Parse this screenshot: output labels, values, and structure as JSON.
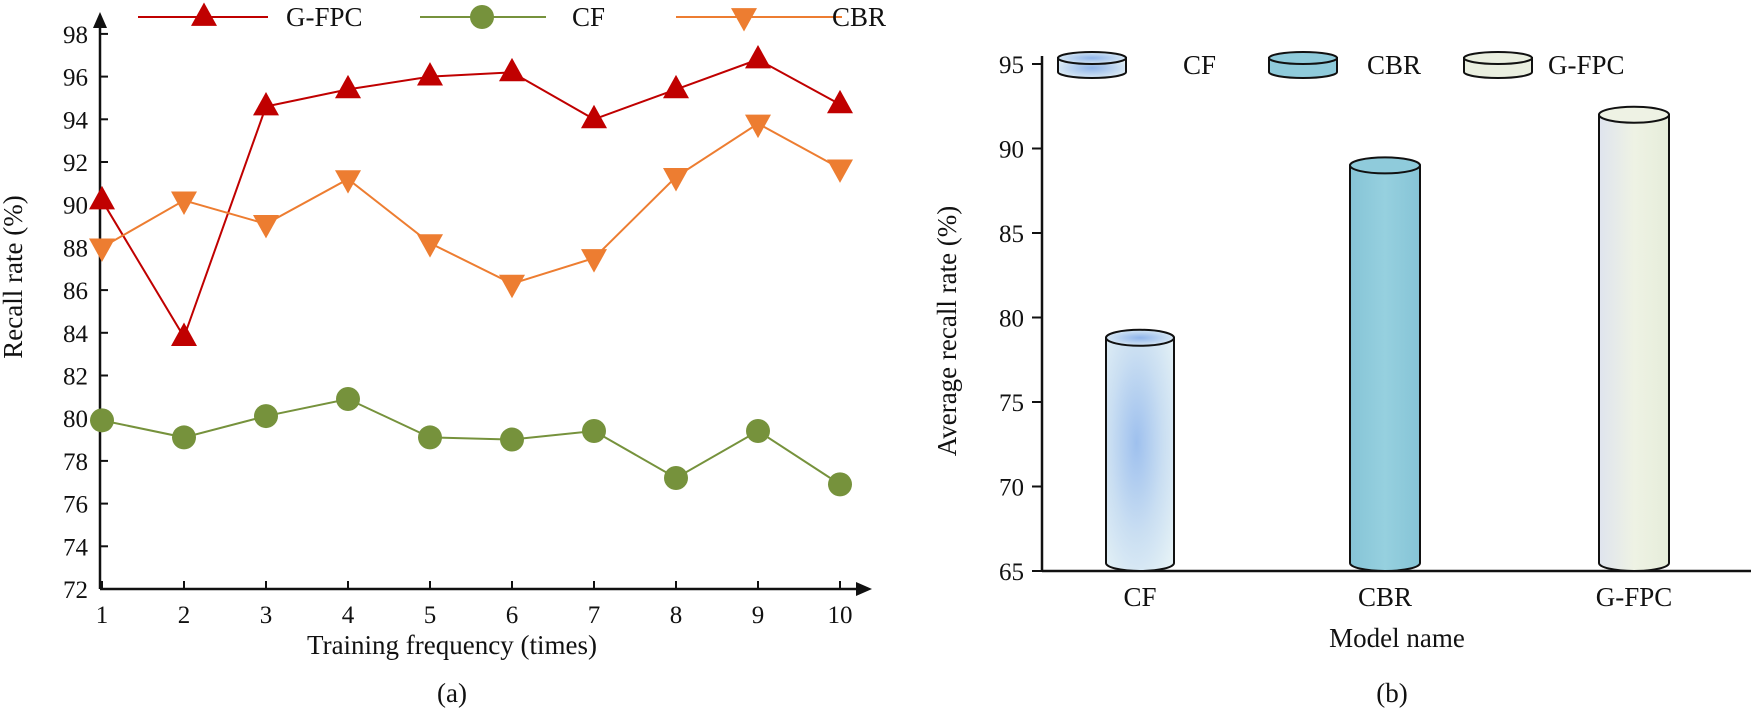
{
  "chart_data": [
    {
      "type": "line",
      "caption": "(a)",
      "xlabel": "Training frequency (times)",
      "ylabel": "Recall rate (%)",
      "x": [
        1,
        2,
        3,
        4,
        5,
        6,
        7,
        8,
        9,
        10
      ],
      "x_ticks": [
        "1",
        "2",
        "3",
        "4",
        "5",
        "6",
        "7",
        "8",
        "9",
        "10"
      ],
      "ylim": [
        72,
        99
      ],
      "y_ticks": [
        "72",
        "74",
        "76",
        "78",
        "80",
        "82",
        "84",
        "86",
        "88",
        "90",
        "92",
        "94",
        "96",
        "98"
      ],
      "legend_position": "top",
      "series": [
        {
          "name": "G-FPC",
          "marker": "triangle-up",
          "color": "#c00000",
          "values": [
            90.2,
            83.8,
            94.6,
            95.4,
            96.0,
            96.2,
            94.0,
            95.4,
            96.8,
            94.7
          ]
        },
        {
          "name": "CF",
          "marker": "circle",
          "color": "#76923c",
          "values": [
            79.9,
            79.1,
            80.1,
            80.9,
            79.1,
            79.0,
            79.4,
            77.2,
            79.4,
            76.9
          ]
        },
        {
          "name": "CBR",
          "marker": "triangle-down",
          "color": "#ed7d31",
          "values": [
            88.0,
            90.2,
            89.1,
            91.2,
            88.2,
            86.3,
            87.5,
            91.3,
            93.8,
            91.7
          ]
        }
      ]
    },
    {
      "type": "bar",
      "style": "cylinder",
      "caption": "(b)",
      "xlabel": "Model name",
      "ylabel": "Average recall rate (%)",
      "categories": [
        "CF",
        "CBR",
        "G-FPC"
      ],
      "values": [
        78.8,
        89.0,
        92.0
      ],
      "colors": [
        "#cfe6f0",
        "#8fcbdb",
        "#e9efdd"
      ],
      "ylim": [
        65,
        95
      ],
      "y_ticks": [
        "65",
        "70",
        "75",
        "80",
        "85",
        "90",
        "95"
      ],
      "legend": [
        "CF",
        "CBR",
        "G-FPC"
      ],
      "legend_position": "top"
    }
  ]
}
